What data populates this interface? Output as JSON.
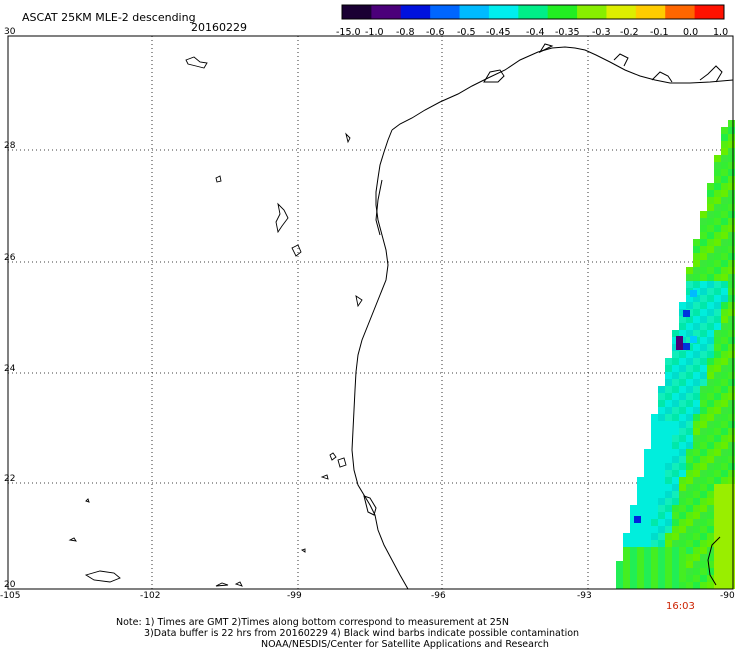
{
  "title": "ASCAT 25KM MLE-2 descending",
  "date": "20160229",
  "colorbar": {
    "labels": [
      "-15.0",
      "-1.0",
      "-0.8",
      "-0.6",
      "-0.5",
      "-0.45",
      "-0.4",
      "-0.35",
      "-0.3",
      "-0.2",
      "-0.1",
      "0.0",
      "1.0"
    ],
    "colors": [
      "#1a0033",
      "#4b007a",
      "#0011dd",
      "#0066ff",
      "#00bbff",
      "#00eeee",
      "#00ee88",
      "#22ee22",
      "#88ee00",
      "#ddee00",
      "#ffcc00",
      "#ff6600",
      "#ff1100"
    ]
  },
  "lat_labels": [
    "30",
    "28",
    "26",
    "24",
    "22",
    "20"
  ],
  "lon_labels": [
    "-105",
    "-102",
    "-99",
    "-96",
    "-93",
    "-90"
  ],
  "pass_time": "16:03",
  "notes": [
    "Note: 1) Times are GMT 2)Times along bottom correspond to measurement at 25N",
    "3)Data buffer is 22 hrs from 20160229 4) Black wind barbs indicate possible contamination",
    "NOAA/NESDIS/Center for Satellite Applications and Research"
  ]
}
